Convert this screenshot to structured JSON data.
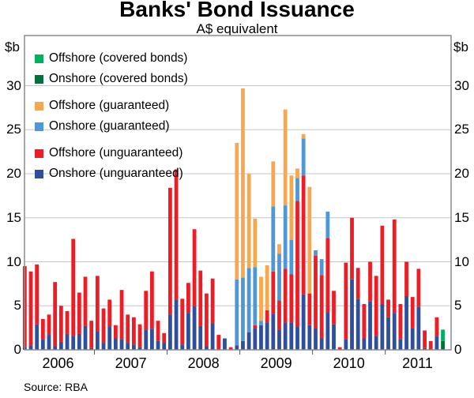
{
  "title": "Banks' Bond Issuance",
  "subtitle": "A$ equivalent",
  "source_note": "Source: RBA",
  "y_axis": {
    "unit": "$b",
    "ticks": [
      0,
      5,
      10,
      15,
      20,
      25,
      30
    ]
  },
  "x_axis": {
    "years": [
      "2006",
      "2007",
      "2008",
      "2009",
      "2010",
      "2011"
    ]
  },
  "legend": [
    {
      "label": "Offshore (covered bonds)",
      "series": "offshore_covered"
    },
    {
      "label": "Onshore (covered bonds)",
      "series": "onshore_covered"
    },
    {
      "label": "Offshore (guaranteed)",
      "series": "offshore_guaranteed"
    },
    {
      "label": "Onshore (guaranteed)",
      "series": "onshore_guaranteed"
    },
    {
      "label": "Offshore (unguaranteed)",
      "series": "offshore_unguaranteed"
    },
    {
      "label": "Onshore (unguaranteed)",
      "series": "onshore_unguaranteed"
    }
  ],
  "colors": {
    "offshore_covered": "#00b05f",
    "onshore_covered": "#00703c",
    "offshore_guaranteed": "#f7a84e",
    "onshore_guaranteed": "#4e97d9",
    "offshore_unguaranteed": "#ee1c25",
    "onshore_unguaranteed": "#2f4f9e",
    "gridline": "#c4c4c4",
    "frame": "#8c8c8c",
    "tick": "#555555"
  },
  "chart_data": {
    "type": "bar",
    "stacked": true,
    "title": "Banks' Bond Issuance",
    "subtitle": "A$ equivalent",
    "ylabel": "$b (A$ billion equivalent)",
    "ylim": [
      0,
      35.7
    ],
    "gridlines": [
      5,
      10,
      15,
      20,
      25,
      30
    ],
    "legend_position": "top-left",
    "months": [
      "2006-01",
      "2006-02",
      "2006-03",
      "2006-04",
      "2006-05",
      "2006-06",
      "2006-07",
      "2006-08",
      "2006-09",
      "2006-10",
      "2006-11",
      "2006-12",
      "2007-01",
      "2007-02",
      "2007-03",
      "2007-04",
      "2007-05",
      "2007-06",
      "2007-07",
      "2007-08",
      "2007-09",
      "2007-10",
      "2007-11",
      "2007-12",
      "2008-01",
      "2008-02",
      "2008-03",
      "2008-04",
      "2008-05",
      "2008-06",
      "2008-07",
      "2008-08",
      "2008-09",
      "2008-10",
      "2008-11",
      "2008-12",
      "2009-01",
      "2009-02",
      "2009-03",
      "2009-04",
      "2009-05",
      "2009-06",
      "2009-07",
      "2009-08",
      "2009-09",
      "2009-10",
      "2009-11",
      "2009-12",
      "2010-01",
      "2010-02",
      "2010-03",
      "2010-04",
      "2010-05",
      "2010-06",
      "2010-07",
      "2010-08",
      "2010-09",
      "2010-10",
      "2010-11",
      "2010-12",
      "2011-01",
      "2011-02",
      "2011-03",
      "2011-04",
      "2011-05",
      "2011-06",
      "2011-07",
      "2011-08",
      "2011-09",
      "2011-10"
    ],
    "stack_order": [
      "onshore_unguaranteed",
      "offshore_unguaranteed",
      "onshore_guaranteed",
      "offshore_guaranteed",
      "onshore_covered",
      "offshore_covered"
    ],
    "series": {
      "onshore_unguaranteed": [
        0.3,
        0.5,
        2.9,
        1.2,
        1.7,
        0.4,
        0.9,
        1.8,
        1.6,
        1.8,
        2.7,
        0.2,
        2.1,
        0.8,
        2.6,
        1.3,
        1.2,
        0.8,
        0.6,
        0.3,
        2.3,
        2.4,
        1.0,
        0.8,
        4.0,
        5.7,
        0.6,
        4.2,
        5.0,
        2.7,
        0.4,
        3.0,
        0,
        1.3,
        0,
        0.5,
        1.0,
        2.0,
        2.5,
        2.8,
        3.1,
        4.1,
        2.3,
        3.1,
        3.1,
        2.6,
        6.3,
        2.8,
        2.5,
        1.3,
        4.3,
        2.9,
        0,
        1.2,
        8.0,
        5.8,
        1.3,
        5.5,
        1.6,
        5.2,
        3.7,
        4.2,
        1.2,
        6.1,
        2.5,
        4.9,
        0.2,
        0,
        1.6,
        0
      ],
      "offshore_unguaranteed": [
        9.2,
        8.4,
        6.8,
        2.3,
        2.3,
        7.3,
        4.1,
        2.6,
        11.0,
        4.7,
        5.6,
        3.1,
        6.3,
        3.9,
        3.1,
        1.5,
        5.6,
        3.2,
        3.1,
        2.6,
        4.4,
        6.5,
        2.3,
        1.1,
        14.4,
        14.8,
        5.2,
        3.4,
        8.7,
        6.3,
        6.0,
        5.1,
        1.7,
        0,
        0.3,
        0,
        0,
        0,
        0.3,
        0,
        1.4,
        4.8,
        3.3,
        6.1,
        5.5,
        14.3,
        13.5,
        3.6,
        8.2,
        7.2,
        8.4,
        3.8,
        0.3,
        8.7,
        7.0,
        3.5,
        3.9,
        4.5,
        6.8,
        8.9,
        2.0,
        10.6,
        4.0,
        3.9,
        3.5,
        4.3,
        2.0,
        1.0,
        2.1,
        0
      ],
      "onshore_guaranteed": [
        0,
        0,
        0,
        0,
        0,
        0,
        0,
        0,
        0,
        0,
        0,
        0,
        0,
        0,
        0,
        0,
        0,
        0,
        0,
        0,
        0,
        0,
        0,
        0,
        0,
        0,
        0,
        0,
        0,
        0,
        0,
        0,
        0,
        0,
        0,
        7.5,
        7.2,
        7.3,
        6.6,
        0.5,
        0,
        7.4,
        5.3,
        7.2,
        3.9,
        2.6,
        4.2,
        0,
        0.6,
        1.8,
        3.0,
        0,
        0,
        0,
        0,
        0,
        0,
        0,
        0,
        0,
        0,
        0,
        0,
        0,
        0,
        0,
        0,
        0,
        0,
        0
      ],
      "offshore_guaranteed": [
        0,
        0,
        0,
        0,
        0,
        0,
        0,
        0,
        0,
        0,
        0,
        0,
        0,
        0,
        0,
        0,
        0,
        0,
        0,
        0,
        0,
        0,
        0,
        0,
        0,
        0,
        0,
        0,
        0,
        0,
        0,
        0,
        0,
        0,
        0,
        15.5,
        21.5,
        10.7,
        5.5,
        5.0,
        5.1,
        5.1,
        1.1,
        10.9,
        7.3,
        1.1,
        0.5,
        12.1,
        0,
        0,
        0,
        0,
        0,
        0,
        0,
        0,
        0,
        0,
        0,
        0,
        0,
        0,
        0,
        0,
        0,
        0,
        0,
        0,
        0,
        0
      ],
      "onshore_covered": [
        0,
        0,
        0,
        0,
        0,
        0,
        0,
        0,
        0,
        0,
        0,
        0,
        0,
        0,
        0,
        0,
        0,
        0,
        0,
        0,
        0,
        0,
        0,
        0,
        0,
        0,
        0,
        0,
        0,
        0,
        0,
        0,
        0,
        0,
        0,
        0,
        0,
        0,
        0,
        0,
        0,
        0,
        0,
        0,
        0,
        0,
        0,
        0,
        0,
        0,
        0,
        0,
        0,
        0,
        0,
        0,
        0,
        0,
        0,
        0,
        0,
        0,
        0,
        0,
        0,
        0,
        0,
        0,
        0,
        1.0
      ],
      "offshore_covered": [
        0,
        0,
        0,
        0,
        0,
        0,
        0,
        0,
        0,
        0,
        0,
        0,
        0,
        0,
        0,
        0,
        0,
        0,
        0,
        0,
        0,
        0,
        0,
        0,
        0,
        0,
        0,
        0,
        0,
        0,
        0,
        0,
        0,
        0,
        0,
        0,
        0,
        0,
        0,
        0,
        0,
        0,
        0,
        0,
        0,
        0,
        0,
        0,
        0,
        0,
        0,
        0,
        0,
        0,
        0,
        0,
        0,
        0,
        0,
        0,
        0,
        0,
        0,
        0,
        0,
        0,
        0,
        0,
        0,
        1.3
      ]
    }
  }
}
